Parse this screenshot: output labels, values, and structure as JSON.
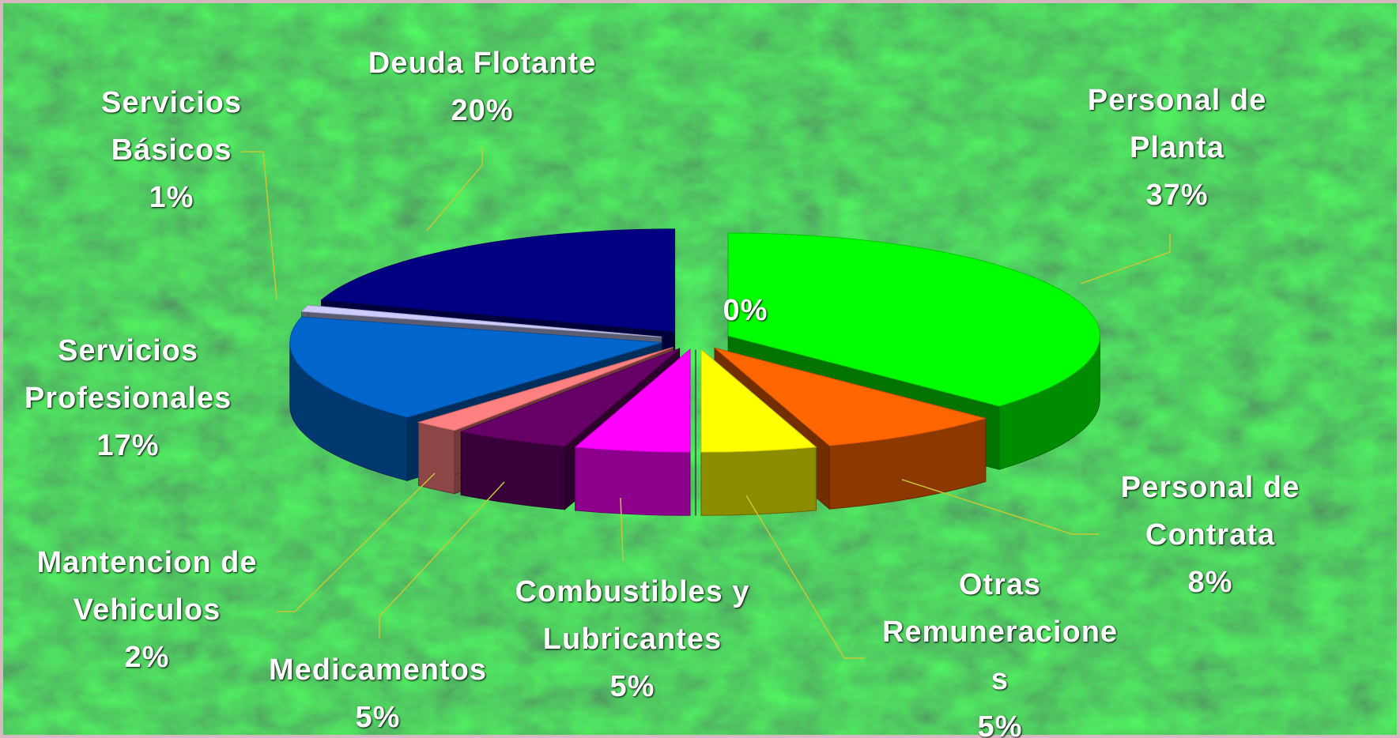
{
  "chart_data": {
    "type": "pie3d",
    "categories": [
      "Personal de Planta",
      "Personal de Contrata",
      "Otras Remuneraciones",
      null,
      "Combustibles y Lubricantes",
      "Medicamentos",
      "Mantencion de Vehiculos",
      "Servicios Profesionales",
      "Servicios Básicos",
      "Deuda Flotante"
    ],
    "values": [
      37,
      8,
      5,
      0,
      5,
      5,
      2,
      17,
      1,
      20
    ],
    "value_labels": [
      "37%",
      "8%",
      "5%",
      "0%",
      "5%",
      "5%",
      "2%",
      "17%",
      "1%",
      "20%"
    ],
    "colors": [
      "#00ff00",
      "#ff6600",
      "#ffff00",
      "#330033",
      "#ff00ff",
      "#660066",
      "#ff8080",
      "#0066cc",
      "#ccccff",
      "#000080"
    ]
  }
}
